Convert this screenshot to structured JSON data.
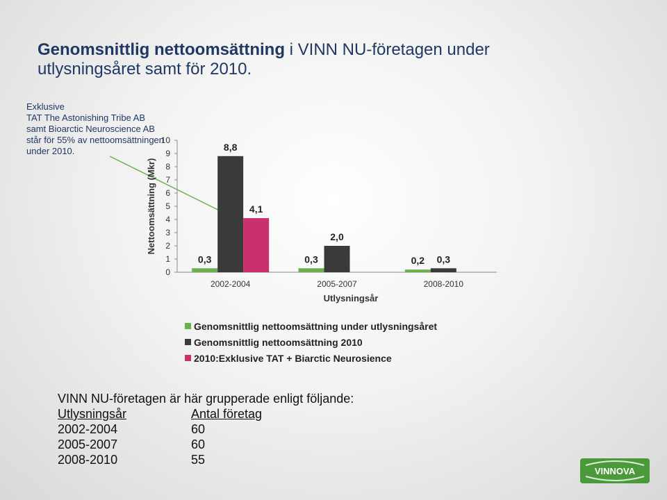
{
  "title": {
    "bold_part": "Genomsnittlig nettoomsättning",
    "rest_line1": " i VINN NU-företagen under",
    "line2": "utlysningsåret samt för 2010."
  },
  "note": {
    "lines": [
      "Exklusive",
      "TAT  The Astonishing Tribe AB",
      "samt Bioarctic Neuroscience AB",
      "står för 55% av nettoomsättningen",
      "under 2010."
    ]
  },
  "chart_data": {
    "type": "bar",
    "categories": [
      "2002-2004",
      "2005-2007",
      "2008-2010"
    ],
    "series": [
      {
        "name": "Genomsnittlig nettoomsättning under utlysningsåret",
        "color": "#6ab04c",
        "values": [
          0.3,
          0.3,
          0.2
        ],
        "labels": [
          "0,3",
          "0,3",
          "0,2"
        ]
      },
      {
        "name": "Genomsnittlig nettoomsättning 2010",
        "color": "#3a3a3a",
        "values": [
          8.8,
          2.0,
          0.3
        ],
        "labels": [
          "8,8",
          "2,0",
          "0,3"
        ]
      },
      {
        "name": "2010:Exklusive TAT + Biarctic Neurosience",
        "color": "#c8306e",
        "values": [
          4.1,
          null,
          null
        ],
        "labels": [
          "4,1",
          null,
          null
        ]
      }
    ],
    "xlabel": "Utlysningsår",
    "ylabel": "Nettoomsättning (Mkr)",
    "ylim": [
      0,
      10
    ],
    "yticks": [
      "0",
      "1",
      "2",
      "3",
      "4",
      "5",
      "6",
      "7",
      "8",
      "9",
      "10"
    ],
    "grid": false,
    "legend_position": "bottom"
  },
  "groups": {
    "heading": "VINN NU-företagen är här grupperade enligt följande:",
    "col1_header": "Utlysningsår",
    "col2_header": "Antal företag",
    "rows": [
      {
        "year": "2002-2004",
        "count": "60"
      },
      {
        "year": "2005-2007",
        "count": "60"
      },
      {
        "year": "2008-2010",
        "count": "55"
      }
    ]
  },
  "logo": {
    "text": "VINNOVA",
    "color": "#4a9a3a"
  }
}
